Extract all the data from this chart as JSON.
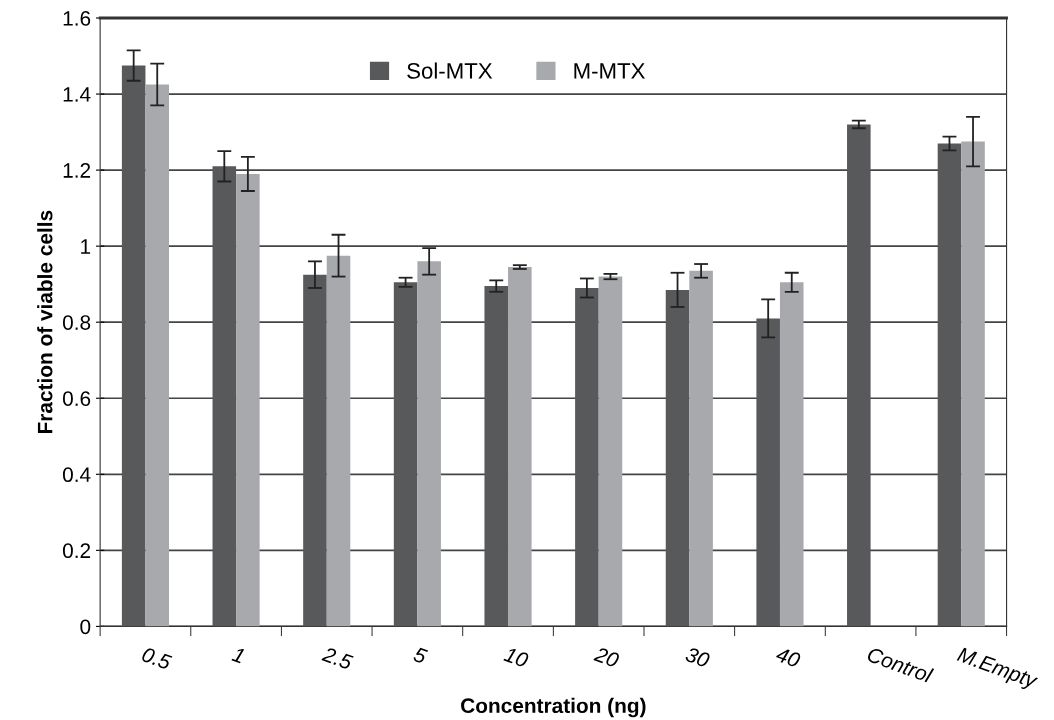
{
  "chart_data": {
    "type": "bar",
    "xlabel": "Concentration (ng)",
    "ylabel": "Fraction of viable cells",
    "categories": [
      "0.5",
      "1",
      "2.5",
      "5",
      "10",
      "20",
      "30",
      "40",
      "Control",
      "M.Empty"
    ],
    "series": [
      {
        "name": "Sol-MTX",
        "color": "#58595b",
        "values": [
          1.475,
          1.21,
          0.925,
          0.905,
          0.895,
          0.89,
          0.885,
          0.81,
          1.32,
          1.27
        ],
        "errors": [
          0.04,
          0.04,
          0.035,
          0.012,
          0.015,
          0.025,
          0.045,
          0.05,
          0.01,
          0.018
        ]
      },
      {
        "name": "M-MTX",
        "color": "#a7a9ac",
        "values": [
          1.425,
          1.19,
          0.975,
          0.96,
          0.945,
          0.92,
          0.935,
          0.905,
          null,
          1.275
        ],
        "errors": [
          0.055,
          0.045,
          0.055,
          0.035,
          0.005,
          0.007,
          0.018,
          0.025,
          null,
          0.065
        ]
      }
    ],
    "ylim": [
      0,
      1.6
    ],
    "yticks": [
      0,
      0.2,
      0.4,
      0.6,
      0.8,
      1,
      1.2,
      1.4,
      1.6
    ],
    "grid": "y",
    "legend": "top"
  }
}
